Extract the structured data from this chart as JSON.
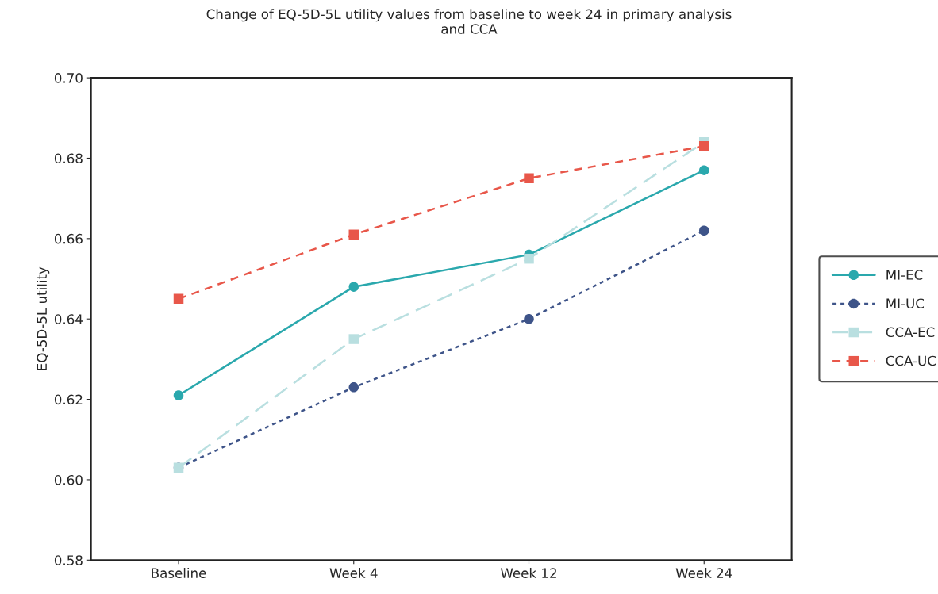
{
  "chart_data": {
    "type": "line",
    "title": "Change of EQ-5D-5L utility values from baseline to week 24 in primary analysis\nand CCA",
    "ylabel": "EQ-5D-5L utility",
    "categories": [
      "Baseline",
      "Week 4",
      "Week 12",
      "Week 24"
    ],
    "series": [
      {
        "name": "MI-EC",
        "color": "#2aa8ad",
        "values": [
          0.621,
          0.648,
          0.656,
          0.677
        ],
        "marker": "circle",
        "line_style": "solid"
      },
      {
        "name": "MI-UC",
        "color": "#3e5489",
        "values": [
          0.603,
          0.623,
          0.64,
          0.662
        ],
        "marker": "circle",
        "line_style": "dotted"
      },
      {
        "name": "CCA-EC",
        "color": "#b9dfe0",
        "values": [
          0.603,
          0.635,
          0.655,
          0.684
        ],
        "marker": "square",
        "line_style": "longdash"
      },
      {
        "name": "CCA-UC",
        "color": "#e8574a",
        "values": [
          0.645,
          0.661,
          0.675,
          0.683
        ],
        "marker": "square",
        "line_style": "dashed"
      }
    ],
    "ylim": [
      0.58,
      0.7
    ],
    "yticks": [
      {
        "value": 0.58,
        "label": "0.58"
      },
      {
        "value": 0.6,
        "label": "0.60"
      },
      {
        "value": 0.62,
        "label": "0.62"
      },
      {
        "value": 0.64,
        "label": "0.64"
      },
      {
        "value": 0.66,
        "label": "0.66"
      },
      {
        "value": 0.68,
        "label": "0.68"
      },
      {
        "value": 0.7,
        "label": "0.70"
      }
    ],
    "grid": false,
    "legend": "right"
  }
}
